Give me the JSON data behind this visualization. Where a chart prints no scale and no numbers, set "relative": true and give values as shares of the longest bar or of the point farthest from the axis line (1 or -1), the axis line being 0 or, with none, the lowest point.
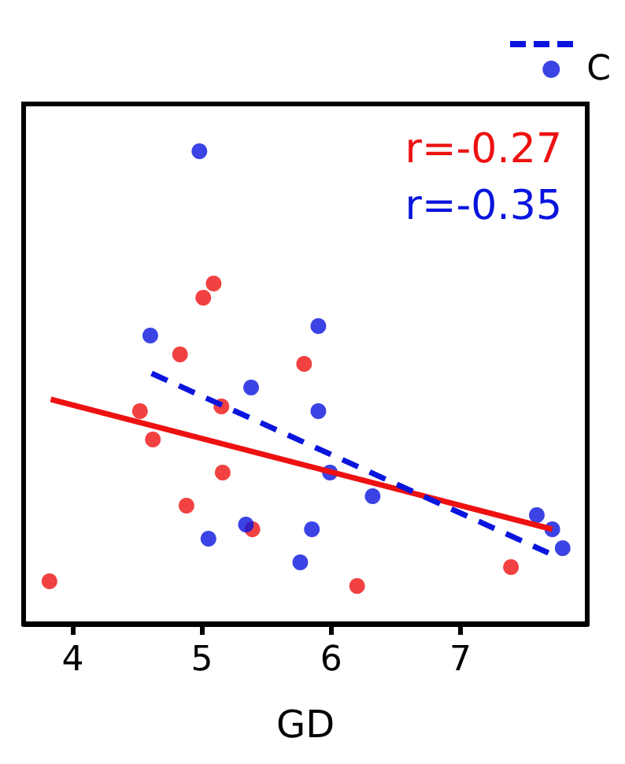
{
  "chart_data": {
    "type": "scatter",
    "xlabel": "GD",
    "relative": true,
    "xlim": [
      3.62,
      7.98
    ],
    "xticks": [
      4,
      5,
      6,
      7
    ],
    "tick_labels": "x",
    "grid": false,
    "legend": "top right",
    "marker": "circle",
    "annotations": [
      "r=-0.27",
      "r=-0.35"
    ],
    "series": [
      {
        "color": "#ee1111",
        "x": [
          3.82,
          4.52,
          4.62,
          4.83,
          4.88,
          5.01,
          5.09,
          5.15,
          5.16,
          5.39,
          5.79,
          6.2,
          7.39
        ],
        "values": [
          0.09,
          0.45,
          0.39,
          0.57,
          0.25,
          0.69,
          0.72,
          0.46,
          0.32,
          0.2,
          0.55,
          0.08,
          0.12
        ]
      },
      {
        "name": "C",
        "color": "#0a14dd",
        "x": [
          4.6,
          4.98,
          5.05,
          5.34,
          5.38,
          5.76,
          5.85,
          5.9,
          5.9,
          5.99,
          6.32,
          7.59,
          7.71,
          7.79
        ],
        "values": [
          0.61,
          1,
          0.18,
          0.21,
          0.5,
          0.13,
          0.2,
          0.63,
          0.45,
          0.32,
          0.27,
          0.23,
          0.2,
          0.16
        ]
      },
      {
        "type": "line",
        "color": "#ee1111",
        "marker": "none",
        "line_style": "solid",
        "x": [
          3.83,
          7.71
        ],
        "values": [
          0.475,
          0.2
        ]
      },
      {
        "type": "line",
        "color": "#0a14dd",
        "marker": "none",
        "line_style": "dashed",
        "x": [
          4.61,
          7.68
        ],
        "values": [
          0.53,
          0.15
        ]
      }
    ]
  }
}
